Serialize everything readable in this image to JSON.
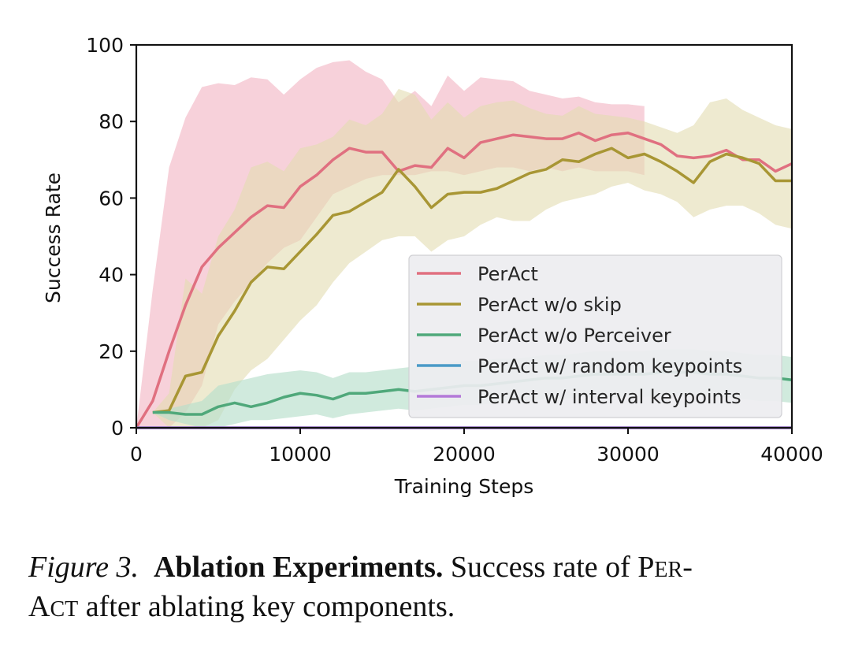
{
  "chart_data": {
    "type": "line",
    "title": "",
    "xlabel": "Training Steps",
    "ylabel": "Success Rate",
    "xlim": [
      0,
      40000
    ],
    "ylim": [
      0,
      100
    ],
    "xticks": [
      0,
      10000,
      20000,
      30000,
      40000
    ],
    "xtick_labels": [
      "0",
      "10000",
      "20000",
      "30000",
      "40000"
    ],
    "yticks": [
      0,
      20,
      40,
      60,
      80,
      100
    ],
    "ytick_labels": [
      "0",
      "20",
      "40",
      "60",
      "80",
      "100"
    ],
    "grid": false,
    "legend_position": "lower-right",
    "x": [
      0,
      1000,
      2000,
      3000,
      4000,
      5000,
      6000,
      7000,
      8000,
      9000,
      10000,
      11000,
      12000,
      13000,
      14000,
      15000,
      16000,
      17000,
      18000,
      19000,
      20000,
      21000,
      22000,
      23000,
      24000,
      25000,
      26000,
      27000,
      28000,
      29000,
      30000,
      31000,
      32000,
      33000,
      34000,
      35000,
      36000,
      37000,
      38000,
      39000,
      40000
    ],
    "series": [
      {
        "name": "PerAct",
        "color": "#e07080",
        "band_color": "#f2b8c6",
        "values": [
          0,
          7,
          20,
          32,
          42,
          47,
          51,
          55,
          58,
          57.5,
          63,
          66,
          70,
          73,
          72,
          72,
          67,
          68.5,
          68,
          73,
          70.5,
          74.5,
          75.5,
          76.5,
          76,
          75.5,
          75.5,
          77,
          75,
          76.5,
          77,
          75.5,
          74,
          71,
          70.5,
          71,
          72.5,
          70,
          70,
          67,
          69
        ],
        "upper": [
          0,
          36,
          68,
          81,
          89,
          90,
          89.5,
          91.5,
          91,
          87,
          91,
          94,
          95.5,
          96,
          93,
          91,
          85,
          88,
          84,
          92,
          88,
          91.5,
          91,
          90.5,
          88,
          87,
          86,
          86.5,
          85,
          84.5,
          84.5,
          84,
          83,
          82,
          81.5,
          80,
          null,
          null,
          null,
          null,
          null
        ],
        "lower": [
          0,
          0,
          0,
          4,
          11,
          27,
          33,
          38,
          43,
          47,
          49,
          55,
          61,
          63,
          65,
          66,
          66,
          66,
          67,
          67,
          66,
          67,
          68,
          68,
          67,
          68,
          67,
          68,
          67,
          67,
          67,
          66,
          null,
          null,
          null,
          null,
          null,
          null,
          null,
          null,
          null
        ]
      },
      {
        "name": "PerAct w/o skip",
        "color": "#a89634",
        "band_color": "#e3dcb0",
        "values": [
          null,
          4,
          4.5,
          13.5,
          14.5,
          24,
          30.5,
          38,
          42,
          41.5,
          46,
          50.5,
          55.5,
          56.5,
          59,
          61.5,
          67.5,
          63,
          57.5,
          61,
          61.5,
          61.5,
          62.5,
          64.5,
          66.5,
          67.5,
          70,
          69.5,
          71.5,
          73,
          70.5,
          71.5,
          69.5,
          67,
          64,
          69.5,
          71.5,
          70.5,
          69,
          64.5,
          64.5
        ],
        "upper": [
          null,
          4,
          9,
          39,
          35,
          50,
          57,
          68,
          69.5,
          67,
          73,
          74,
          76,
          80.5,
          79,
          82,
          88.5,
          87,
          80.5,
          85,
          81,
          84,
          85,
          85.5,
          83.5,
          82,
          81.5,
          84,
          82,
          81.5,
          81,
          80,
          78.5,
          77,
          79,
          85,
          86,
          83,
          81,
          79,
          78
        ],
        "lower": [
          null,
          4,
          0,
          0,
          0,
          2,
          10,
          15,
          18,
          23,
          28,
          32,
          38,
          43,
          46,
          49,
          50,
          50,
          46,
          49,
          50,
          53,
          55,
          54,
          54,
          57,
          59,
          60,
          61,
          63,
          64,
          62,
          61,
          59,
          55,
          57,
          58,
          58,
          56,
          53,
          52
        ]
      },
      {
        "name": "PerAct w/o Perceiver",
        "color": "#4fa87a",
        "band_color": "#b7dfcb",
        "values": [
          null,
          4,
          4,
          3.5,
          3.5,
          5.5,
          6.5,
          5.5,
          6.5,
          8,
          9,
          8.5,
          7.5,
          9,
          9,
          9.5,
          10,
          9.5,
          10,
          10.5,
          11,
          11,
          11.5,
          12,
          12.5,
          13,
          13,
          13.5,
          14,
          14,
          14,
          14,
          14.5,
          14.5,
          14.5,
          14,
          14,
          13.5,
          13,
          13,
          12.5
        ],
        "upper": [
          null,
          4,
          5,
          6,
          7,
          11,
          12,
          13,
          14,
          14.5,
          15,
          14.5,
          13,
          14.5,
          14.5,
          15,
          15.5,
          16,
          16.5,
          17,
          17.5,
          17.5,
          18,
          18,
          18.5,
          19,
          19,
          19.5,
          20,
          20,
          20,
          20,
          20.5,
          20.5,
          20.5,
          20,
          20,
          19.5,
          19,
          19,
          18.5
        ],
        "lower": [
          null,
          4,
          2,
          1,
          0,
          0,
          1,
          2,
          2,
          2.5,
          3,
          3.5,
          2.5,
          3.5,
          4,
          4.5,
          5,
          4.5,
          5,
          5.5,
          6,
          6,
          6.5,
          7,
          7,
          7.5,
          7.5,
          8,
          8,
          8,
          8,
          8,
          8.5,
          8.5,
          8.5,
          8,
          8,
          7.5,
          7,
          7,
          6.5
        ]
      },
      {
        "name": "PerAct w/ random keypoints",
        "color": "#4a9ac7",
        "band_color": "#a9d0e6",
        "values": [
          0,
          0,
          0,
          0,
          0,
          0,
          0,
          0,
          0,
          0,
          0,
          0,
          0,
          0,
          0,
          0,
          0,
          0,
          0,
          0,
          0,
          0,
          0,
          0,
          0,
          0,
          0,
          0,
          0,
          0,
          0,
          0,
          0,
          0,
          0,
          0,
          0,
          0,
          0,
          0,
          0
        ]
      },
      {
        "name": "PerAct w/ interval keypoints",
        "color": "#b47ad8",
        "band_color": "#dcc2ee",
        "values": [
          0,
          0,
          0,
          0,
          0,
          0,
          0,
          0,
          0,
          0,
          0,
          0,
          0,
          0,
          0,
          0,
          0,
          0,
          0,
          0,
          0,
          0,
          0,
          0,
          0,
          0,
          0,
          0,
          0,
          0,
          0,
          0,
          0,
          0,
          0,
          0,
          0,
          0,
          0,
          0,
          0
        ]
      }
    ]
  },
  "caption": {
    "figure_label": "Figure 3.",
    "bold_title": "Ablation Experiments.",
    "text_part1": "Success rate of P",
    "text_sc1": "ER",
    "text_part2": "-",
    "text_part3": "A",
    "text_sc2": "CT",
    "text_part4": " after ablating key components."
  }
}
